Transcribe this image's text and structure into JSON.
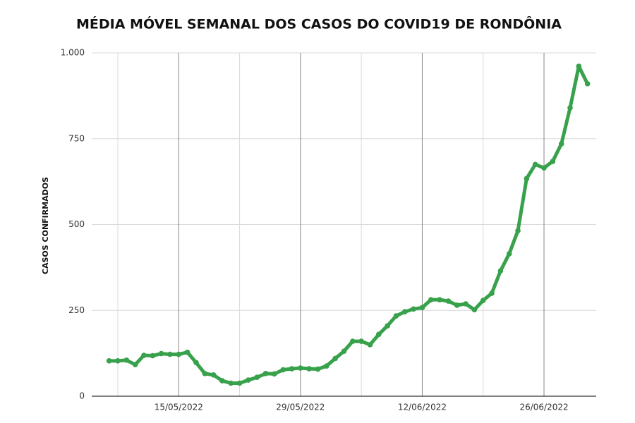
{
  "chart_data": {
    "type": "line",
    "title": "MÉDIA MÓVEL SEMANAL DOS CASOS DO COVID19 DE RONDÔNIA",
    "y_label": "CASOS CONFIRMADOS",
    "x": [
      "07/05/2022",
      "08/05/2022",
      "09/05/2022",
      "10/05/2022",
      "11/05/2022",
      "12/05/2022",
      "13/05/2022",
      "14/05/2022",
      "15/05/2022",
      "16/05/2022",
      "17/05/2022",
      "18/05/2022",
      "19/05/2022",
      "20/05/2022",
      "21/05/2022",
      "22/05/2022",
      "23/05/2022",
      "24/05/2022",
      "25/05/2022",
      "26/05/2022",
      "27/05/2022",
      "28/05/2022",
      "29/05/2022",
      "30/05/2022",
      "31/05/2022",
      "01/06/2022",
      "02/06/2022",
      "03/06/2022",
      "04/06/2022",
      "05/06/2022",
      "06/06/2022",
      "07/06/2022",
      "08/06/2022",
      "09/06/2022",
      "10/06/2022",
      "11/06/2022",
      "12/06/2022",
      "13/06/2022",
      "14/06/2022",
      "15/06/2022",
      "16/06/2022",
      "17/06/2022",
      "18/06/2022",
      "19/06/2022",
      "20/06/2022",
      "21/06/2022",
      "22/06/2022",
      "23/06/2022",
      "24/06/2022",
      "25/06/2022",
      "26/06/2022",
      "27/06/2022",
      "28/06/2022",
      "29/06/2022",
      "30/06/2022",
      "01/07/2022"
    ],
    "series": [
      {
        "name": "Média móvel",
        "color": "#38a14b",
        "values": [
          103,
          103,
          105,
          92,
          119,
          118,
          124,
          122,
          122,
          128,
          98,
          66,
          62,
          45,
          38,
          38,
          47,
          55,
          66,
          65,
          77,
          80,
          82,
          80,
          79,
          88,
          110,
          131,
          160,
          160,
          150,
          180,
          205,
          234,
          246,
          254,
          258,
          281,
          281,
          277,
          265,
          269,
          252,
          279,
          300,
          365,
          415,
          482,
          634,
          675,
          665,
          684,
          735,
          840,
          961,
          910
        ]
      }
    ],
    "xlim": [
      "05/05/2022",
      "02/07/2022"
    ],
    "xticks": [
      "15/05/2022",
      "29/05/2022",
      "12/06/2022",
      "26/06/2022"
    ],
    "ylim": [
      0,
      1000
    ],
    "yticks": [
      0,
      250,
      500,
      750,
      {
        "value": 1000,
        "label": "1.000"
      }
    ],
    "grid": true
  }
}
